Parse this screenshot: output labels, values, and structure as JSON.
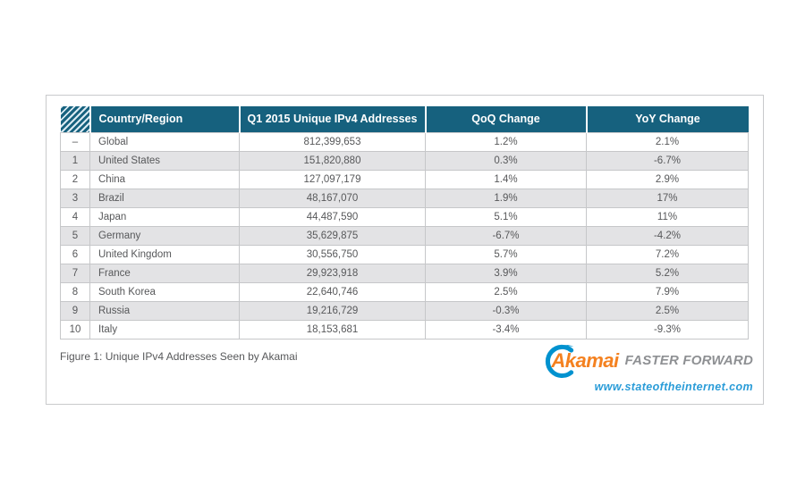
{
  "figure": {
    "caption": "Figure 1: Unique IPv4 Addresses Seen by Akamai"
  },
  "table": {
    "columns": [
      "",
      "Country/Region",
      "Q1 2015 Unique IPv4 Addresses",
      "QoQ Change",
      "YoY Change"
    ],
    "rows": [
      {
        "rank": "–",
        "country": "Global",
        "addresses": "812,399,653",
        "qoq": "1.2%",
        "yoy": "2.1%"
      },
      {
        "rank": "1",
        "country": "United States",
        "addresses": "151,820,880",
        "qoq": "0.3%",
        "yoy": "-6.7%"
      },
      {
        "rank": "2",
        "country": "China",
        "addresses": "127,097,179",
        "qoq": "1.4%",
        "yoy": "2.9%"
      },
      {
        "rank": "3",
        "country": "Brazil",
        "addresses": "48,167,070",
        "qoq": "1.9%",
        "yoy": "17%"
      },
      {
        "rank": "4",
        "country": "Japan",
        "addresses": "44,487,590",
        "qoq": "5.1%",
        "yoy": "11%"
      },
      {
        "rank": "5",
        "country": "Germany",
        "addresses": "35,629,875",
        "qoq": "-6.7%",
        "yoy": "-4.2%"
      },
      {
        "rank": "6",
        "country": "United Kingdom",
        "addresses": "30,556,750",
        "qoq": "5.7%",
        "yoy": "7.2%"
      },
      {
        "rank": "7",
        "country": "France",
        "addresses": "29,923,918",
        "qoq": "3.9%",
        "yoy": "5.2%"
      },
      {
        "rank": "8",
        "country": "South Korea",
        "addresses": "22,640,746",
        "qoq": "2.5%",
        "yoy": "7.9%"
      },
      {
        "rank": "9",
        "country": "Russia",
        "addresses": "19,216,729",
        "qoq": "-0.3%",
        "yoy": "2.5%"
      },
      {
        "rank": "10",
        "country": "Italy",
        "addresses": "18,153,681",
        "qoq": "-3.4%",
        "yoy": "-9.3%"
      }
    ]
  },
  "branding": {
    "logo_text": "Akamai",
    "tagline": "FASTER FORWARD",
    "website": "www.stateoftheinternet.com"
  },
  "colors": {
    "header_teal": "#16617e",
    "row_stripe": "#e3e3e5",
    "accent_orange": "#f48120",
    "logo_blue": "#0092cf",
    "link_blue": "#2a9cd8"
  }
}
